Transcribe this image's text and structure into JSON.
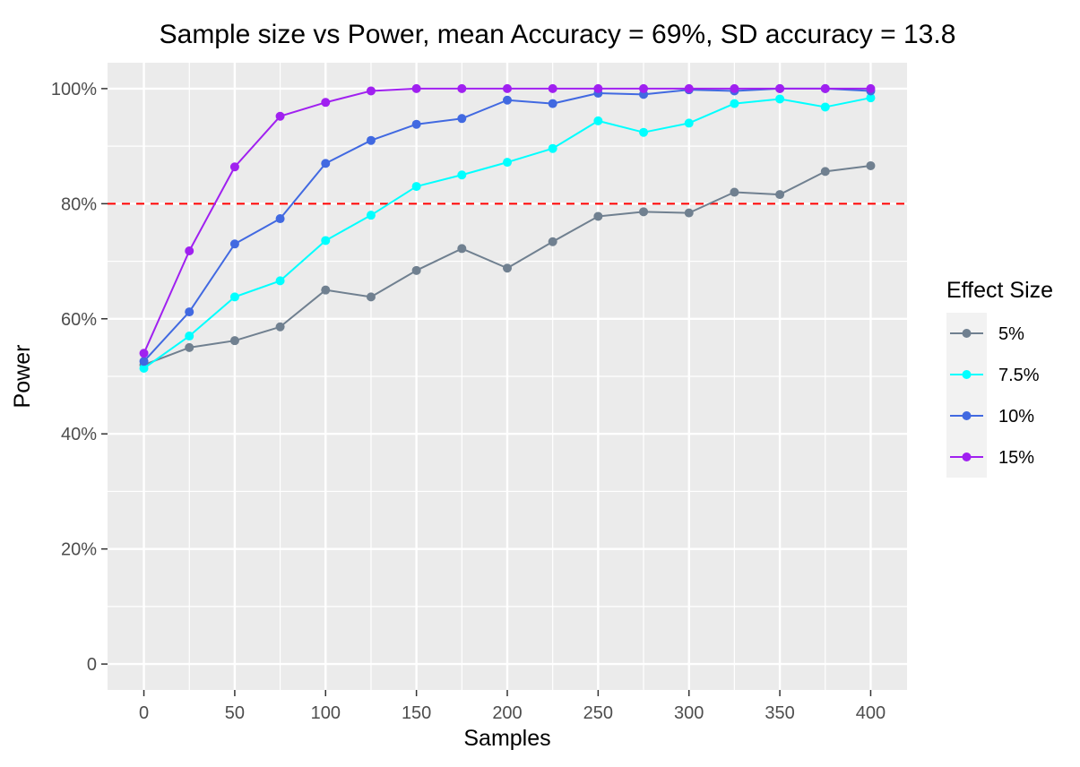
{
  "chart_data": {
    "type": "line",
    "title": "Sample size vs Power, mean Accuracy = 69%, SD accuracy = 13.8",
    "xlabel": "Samples",
    "ylabel": "Power",
    "x": [
      0,
      25,
      50,
      75,
      100,
      125,
      150,
      175,
      200,
      225,
      250,
      275,
      300,
      325,
      350,
      375,
      400
    ],
    "xlim": [
      -20,
      420
    ],
    "ylim": [
      -0.045,
      1.045
    ],
    "x_ticks": [
      {
        "value": 0,
        "label": "0"
      },
      {
        "value": 50,
        "label": "50"
      },
      {
        "value": 100,
        "label": "100"
      },
      {
        "value": 150,
        "label": "150"
      },
      {
        "value": 200,
        "label": "200"
      },
      {
        "value": 250,
        "label": "250"
      },
      {
        "value": 300,
        "label": "300"
      },
      {
        "value": 350,
        "label": "350"
      },
      {
        "value": 400,
        "label": "400"
      }
    ],
    "y_ticks": [
      {
        "value": 0,
        "label": "0"
      },
      {
        "value": 0.2,
        "label": "20%"
      },
      {
        "value": 0.4,
        "label": "40%"
      },
      {
        "value": 0.6,
        "label": "60%"
      },
      {
        "value": 0.8,
        "label": "80%"
      },
      {
        "value": 1.0,
        "label": "100%"
      }
    ],
    "reference_line": {
      "y": 0.8,
      "color": "#ff0000",
      "style": "dashed"
    },
    "grid": true,
    "panel_background": "#ebebeb",
    "legend": {
      "title": "Effect Size",
      "position": "right"
    },
    "series": [
      {
        "name": "5%",
        "color": "#708090",
        "values": [
          0.52,
          0.55,
          0.562,
          0.586,
          0.65,
          0.638,
          0.684,
          0.722,
          0.688,
          0.734,
          0.778,
          0.786,
          0.784,
          0.82,
          0.816,
          0.856,
          0.866
        ]
      },
      {
        "name": "7.5%",
        "color": "#00ffff",
        "values": [
          0.514,
          0.57,
          0.638,
          0.666,
          0.736,
          0.78,
          0.83,
          0.85,
          0.872,
          0.896,
          0.944,
          0.924,
          0.94,
          0.974,
          0.982,
          0.968,
          0.984
        ]
      },
      {
        "name": "10%",
        "color": "#4169e1",
        "values": [
          0.526,
          0.612,
          0.73,
          0.774,
          0.87,
          0.91,
          0.938,
          0.948,
          0.98,
          0.974,
          0.992,
          0.99,
          0.998,
          0.996,
          1.0,
          1.0,
          0.996
        ]
      },
      {
        "name": "15%",
        "color": "#a020f0",
        "values": [
          0.54,
          0.718,
          0.864,
          0.952,
          0.976,
          0.996,
          1.0,
          1.0,
          1.0,
          1.0,
          1.0,
          1.0,
          1.0,
          1.0,
          1.0,
          1.0,
          1.0
        ]
      }
    ]
  }
}
